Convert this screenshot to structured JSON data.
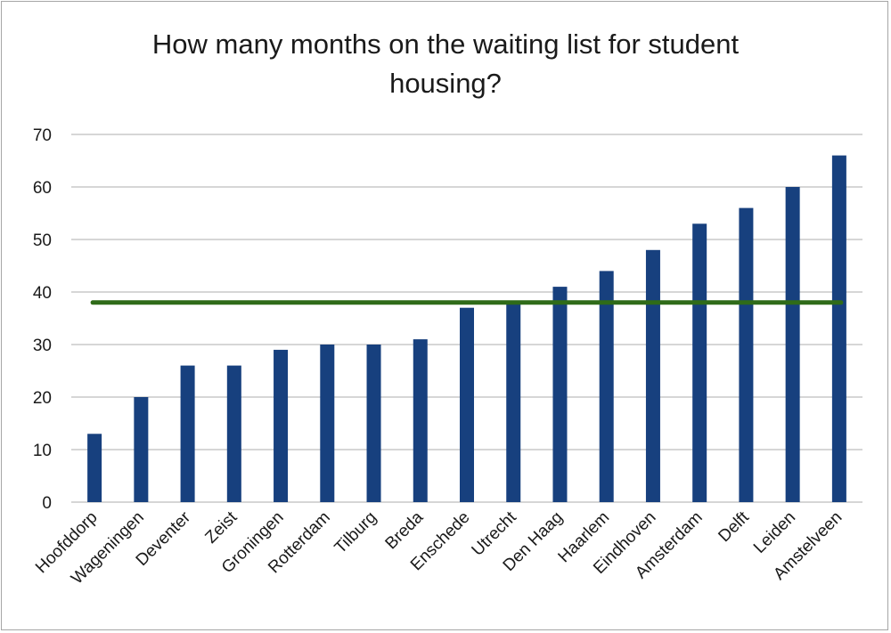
{
  "chart_data": {
    "type": "bar",
    "title_lines": [
      "How many months on the waiting list for student",
      "housing?"
    ],
    "categories": [
      "Hoofddorp",
      "Wageningen",
      "Deventer",
      "Zeist",
      "Groningen",
      "Rotterdam",
      "Tilburg",
      "Breda",
      "Enschede",
      "Utrecht",
      "Den Haag",
      "Haarlem",
      "Eindhoven",
      "Amsterdam",
      "Delft",
      "Leiden",
      "Amstelveen"
    ],
    "values": [
      13,
      20,
      26,
      26,
      29,
      30,
      30,
      31,
      37,
      38,
      41,
      44,
      48,
      53,
      56,
      60,
      66
    ],
    "reference_line": 38,
    "ylim": [
      0,
      70
    ],
    "yticks": [
      0,
      10,
      20,
      30,
      40,
      50,
      60,
      70
    ],
    "xlabel": "",
    "ylabel": "",
    "grid": true,
    "legend": "none",
    "bar_color": "#17407e",
    "reference_line_color": "#2f6b19",
    "grid_color": "#c8c8c8"
  }
}
